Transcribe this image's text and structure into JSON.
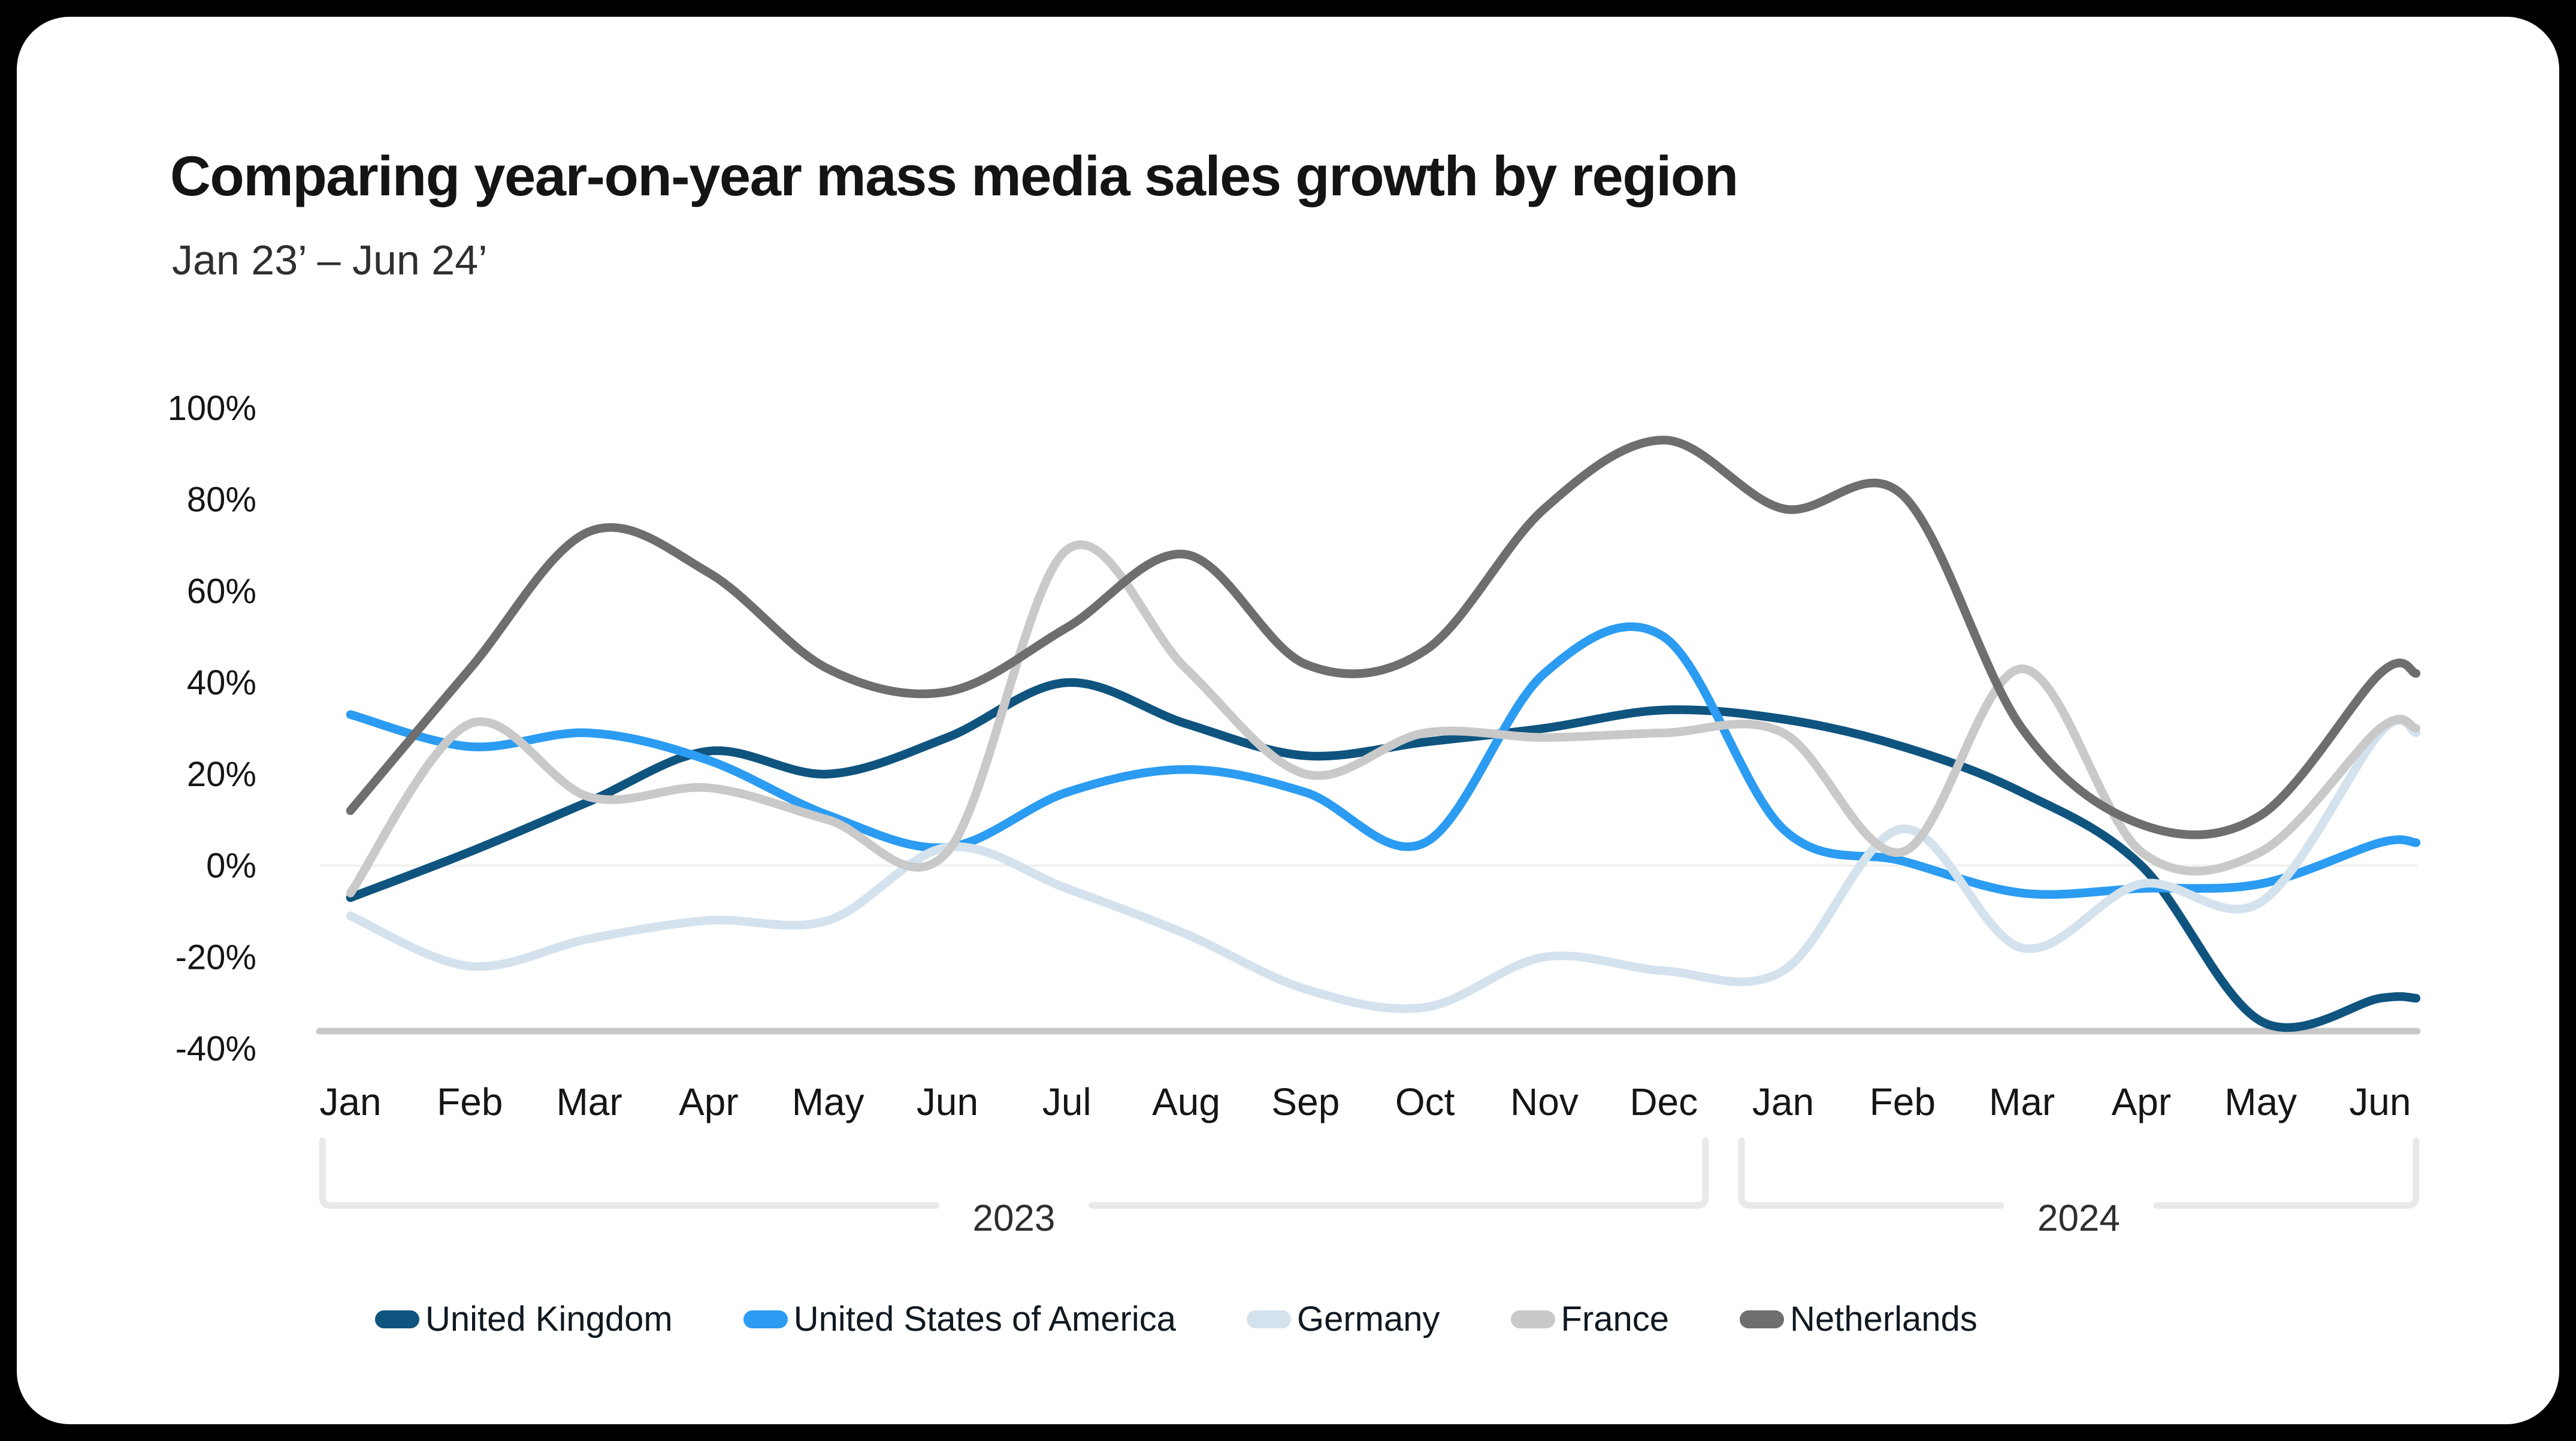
{
  "chart_data": {
    "type": "line",
    "title": "Comparing year-on-year mass media sales growth by region",
    "subtitle": "Jan 23’ – Jun 24’",
    "unit": "%",
    "categories": [
      "Jan",
      "Feb",
      "Mar",
      "Apr",
      "May",
      "Jun",
      "Jul",
      "Aug",
      "Sep",
      "Oct",
      "Nov",
      "Dec",
      "Jan",
      "Feb",
      "Mar",
      "Apr",
      "May",
      "Jun"
    ],
    "year_groups": [
      {
        "label": "2023",
        "from": 0,
        "to": 11
      },
      {
        "label": "2024",
        "from": 12,
        "to": 17
      }
    ],
    "y_axis": {
      "min": -40,
      "max": 100,
      "step": 20,
      "tick_labels": [
        "100%",
        "80%",
        "60%",
        "40%",
        "20%",
        "0%",
        "-20%",
        "-40%"
      ],
      "zero_gridline": true
    },
    "series": [
      {
        "name": "United Kingdom",
        "color": "#0f547f",
        "values": [
          -7,
          3,
          14,
          25,
          20,
          28,
          40,
          31,
          24,
          27,
          30,
          34,
          32,
          26,
          16,
          0,
          -34,
          -29
        ]
      },
      {
        "name": "United States of America",
        "color": "#2b9cf2",
        "values": [
          33,
          26,
          29,
          23,
          11,
          4,
          16,
          21,
          16,
          5,
          42,
          50,
          8,
          1,
          -6,
          -5,
          -4,
          5
        ]
      },
      {
        "name": "Germany",
        "color": "#d4e2ee",
        "values": [
          -11,
          -22,
          -16,
          -12,
          -12,
          4,
          -5,
          -15,
          -27,
          -31,
          -20,
          -23,
          -23,
          8,
          -18,
          -4,
          -8,
          29
        ]
      },
      {
        "name": "France",
        "color": "#c9c9c9",
        "values": [
          -6,
          31,
          15,
          17,
          10,
          3,
          69,
          43,
          20,
          29,
          28,
          29,
          29,
          3,
          43,
          3,
          3,
          30
        ]
      },
      {
        "name": "Netherlands",
        "color": "#6e6e6e",
        "values": [
          12,
          43,
          73,
          64,
          43,
          38,
          52,
          68,
          44,
          47,
          78,
          93,
          78,
          81,
          30,
          9,
          11,
          42
        ]
      }
    ],
    "styles": {
      "axis_line_color": "#c9c9c9",
      "zero_line_color": "#f1f1f1",
      "bracket_color": "#e9e9e9",
      "tick_label_color": "#151515",
      "year_label_color": "#2e2e2e",
      "legend_text_color": "#101820"
    }
  }
}
